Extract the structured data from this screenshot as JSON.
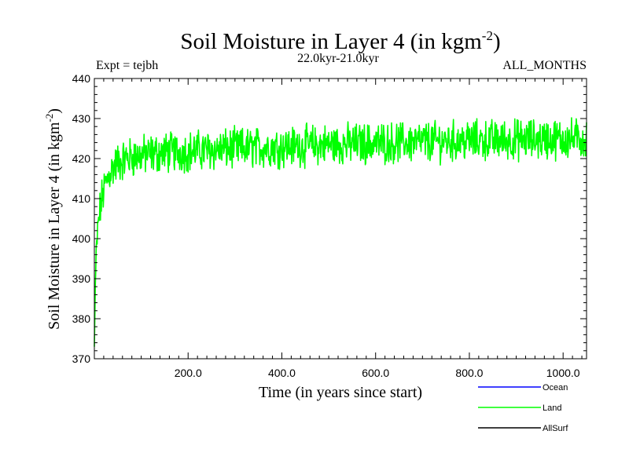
{
  "chart_data": {
    "type": "line",
    "title": "Soil Moisture in Layer 4 (in kgm",
    "title_superscript": "-2",
    "title_close": ")",
    "subtitle": "22.0kyr-21.0kyr",
    "left_label": "Expt = tejbh",
    "right_label": "ALL_MONTHS",
    "xlabel": "Time (in years since start)",
    "ylabel": "Soil Moisture in Layer 4 (in kgm",
    "ylabel_superscript": "-2",
    "ylabel_close": ")",
    "xlim": [
      0,
      1050
    ],
    "ylim": [
      370,
      440
    ],
    "x_ticks": [
      200,
      400,
      600,
      800,
      1000
    ],
    "x_tick_labels": [
      "200.0",
      "400.0",
      "600.0",
      "800.0",
      "1000.0"
    ],
    "y_ticks": [
      370,
      380,
      390,
      400,
      410,
      420,
      430,
      440
    ],
    "y_tick_labels": [
      "370",
      "380",
      "390",
      "400",
      "410",
      "420",
      "430",
      "440"
    ],
    "series": [
      {
        "name": "Ocean",
        "color": "#0000ff",
        "values": []
      },
      {
        "name": "Land",
        "color": "#00ff00",
        "spinup": [
          [
            0,
            373
          ],
          [
            1,
            380
          ],
          [
            2,
            388
          ],
          [
            4,
            395
          ],
          [
            6,
            400
          ],
          [
            9,
            404
          ],
          [
            13,
            408
          ],
          [
            18,
            411
          ],
          [
            25,
            414
          ],
          [
            35,
            417
          ],
          [
            50,
            419
          ],
          [
            80,
            420.5
          ],
          [
            150,
            421.5
          ],
          [
            300,
            422.5
          ],
          [
            500,
            423.5
          ],
          [
            800,
            424.5
          ],
          [
            1050,
            425
          ]
        ],
        "noise_amplitude": 4,
        "extremes": {
          "min": 373,
          "max": 435
        }
      },
      {
        "name": "AllSurf",
        "color": "#000000",
        "values": []
      }
    ],
    "legend": [
      {
        "name": "Ocean",
        "color": "#0000ff"
      },
      {
        "name": "Land",
        "color": "#00ff00"
      },
      {
        "name": "AllSurf",
        "color": "#000000"
      }
    ],
    "legend_position": "bottom-right"
  }
}
